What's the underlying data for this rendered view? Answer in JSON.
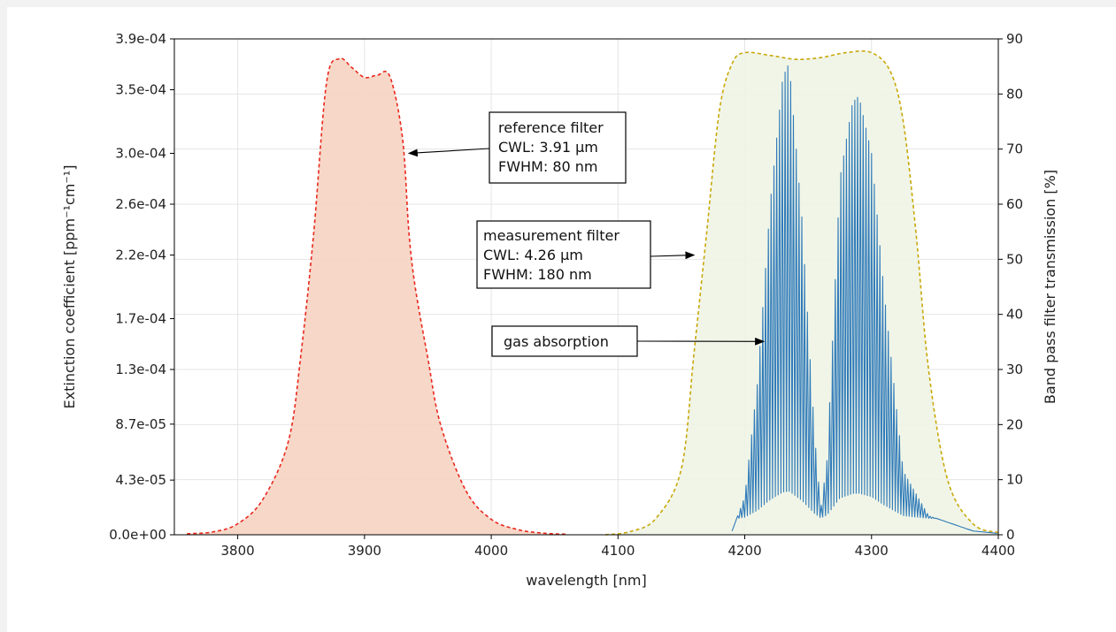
{
  "chart_data": {
    "type": "line",
    "xlabel": "wavelength [nm]",
    "ylabel_left": "Extinction coefficient [ppm⁻¹cm⁻¹]",
    "ylabel_right": "Band pass filter transmission [%]",
    "xlim": [
      3750,
      4400
    ],
    "ylim_left": [
      0,
      0.00039
    ],
    "ylim_right": [
      0,
      90
    ],
    "grid": true,
    "x_ticks": [
      3800,
      3900,
      4000,
      4100,
      4200,
      4300,
      4400
    ],
    "x_tick_labels": [
      "3800",
      "3900",
      "4000",
      "4100",
      "4200",
      "4300",
      "4400"
    ],
    "y_left_ticks": [
      0,
      4.3e-05,
      8.7e-05,
      0.00013,
      0.00017,
      0.00022,
      0.00026,
      0.0003,
      0.00035,
      0.00039
    ],
    "y_left_tick_labels": [
      "0.0e+00",
      "4.3e-05",
      "8.7e-05",
      "1.3e-04",
      "1.7e-04",
      "2.2e-04",
      "2.6e-04",
      "3.0e-04",
      "3.5e-04",
      "3.9e-04"
    ],
    "y_right_ticks": [
      0,
      10,
      20,
      30,
      40,
      50,
      60,
      70,
      80,
      90
    ],
    "y_right_tick_labels": [
      "0",
      "10",
      "20",
      "30",
      "40",
      "50",
      "60",
      "70",
      "80",
      "90"
    ],
    "series": [
      {
        "axis": "right",
        "style": "dashed",
        "color": "#e8281e",
        "fill": "#f6d3c2",
        "x": [
          3760,
          3780,
          3800,
          3820,
          3840,
          3850,
          3860,
          3870,
          3880,
          3890,
          3900,
          3910,
          3920,
          3930,
          3935,
          3940,
          3950,
          3960,
          3980,
          4000,
          4020,
          4040,
          4060
        ],
        "y": [
          0.2,
          0.5,
          2,
          6.5,
          17,
          33,
          55,
          82,
          86.4,
          84.8,
          83,
          83.4,
          83.2,
          72,
          55,
          45,
          32,
          20,
          8,
          2.8,
          1,
          0.3,
          0.1
        ]
      },
      {
        "axis": "right",
        "style": "dashed",
        "color": "#c8a80a",
        "fill": "#eef4e4",
        "x": [
          4090,
          4110,
          4130,
          4150,
          4160,
          4170,
          4180,
          4190,
          4200,
          4220,
          4240,
          4260,
          4280,
          4300,
          4315,
          4325,
          4335,
          4345,
          4360,
          4380,
          4400
        ],
        "y": [
          0,
          0.6,
          3,
          12,
          33,
          55,
          77,
          85.5,
          87.5,
          87,
          86.3,
          86.6,
          87.5,
          87.5,
          84,
          75,
          55,
          30,
          10,
          2,
          0.4
        ]
      },
      {
        "axis": "left",
        "style": "solid",
        "color": "#2f7ab9",
        "x": [
          4190,
          4200,
          4210,
          4220,
          4230,
          4235,
          4245,
          4255,
          4260,
          4265,
          4275,
          4285,
          4290,
          4300,
          4310,
          4325,
          4345,
          4380,
          4400
        ],
        "y": [
          3e-06,
          3e-05,
          0.00012,
          0.00026,
          0.00036,
          0.000371,
          0.00025,
          8e-05,
          2e-05,
          6e-05,
          0.00028,
          0.00034,
          0.000345,
          0.0003,
          0.00019,
          5e-05,
          1.5e-05,
          3e-06,
          1e-06
        ]
      }
    ],
    "annotations": [
      {
        "lines": [
          "reference filter",
          "CWL: 3.91 µm",
          "FWHM: 80 nm"
        ],
        "arrow_to_x": 3935,
        "arrow_to_y": 0.0003
      },
      {
        "lines": [
          "measurement filter",
          "CWL: 4.26 µm",
          "FWHM: 180 nm"
        ],
        "arrow_to_x": 4160,
        "arrow_to_y": 0.00022
      },
      {
        "lines": [
          "gas absorption"
        ],
        "arrow_to_x": 4215,
        "arrow_to_y": 0.000152
      }
    ]
  }
}
